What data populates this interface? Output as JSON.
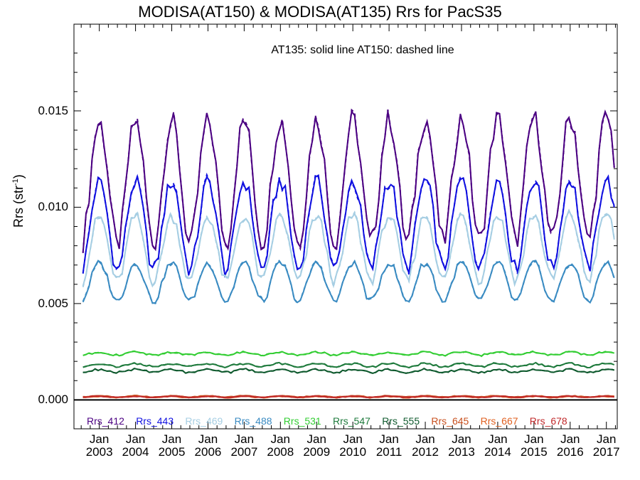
{
  "chart_data": {
    "type": "line",
    "title": "MODISA(AT150) & MODISA(AT135)  Rrs for PacS35",
    "annotation": "AT135: solid line   AT150: dashed line",
    "ylabel": "Rrs (str",
    "ylabel_sup": "-1",
    "ylabel_close": ")",
    "xlim": [
      2002.3,
      2017.3
    ],
    "ylim": [
      -0.0015,
      0.0195
    ],
    "yticks": [
      "0.000",
      "0.005",
      "0.010",
      "0.015"
    ],
    "ytick_values": [
      0.0,
      0.005,
      0.01,
      0.015
    ],
    "xticks": [
      {
        "line1": "Jan",
        "line2": "2003",
        "x": 2003
      },
      {
        "line1": "Jan",
        "line2": "2004",
        "x": 2004
      },
      {
        "line1": "Jan",
        "line2": "2005",
        "x": 2005
      },
      {
        "line1": "Jan",
        "line2": "2006",
        "x": 2006
      },
      {
        "line1": "Jan",
        "line2": "2007",
        "x": 2007
      },
      {
        "line1": "Jan",
        "line2": "2008",
        "x": 2008
      },
      {
        "line1": "Jan",
        "line2": "2009",
        "x": 2009
      },
      {
        "line1": "Jan",
        "line2": "2010",
        "x": 2010
      },
      {
        "line1": "Jan",
        "line2": "2011",
        "x": 2011
      },
      {
        "line1": "Jan",
        "line2": "2012",
        "x": 2012
      },
      {
        "line1": "Jan",
        "line2": "2013",
        "x": 2013
      },
      {
        "line1": "Jan",
        "line2": "2014",
        "x": 2014
      },
      {
        "line1": "Jan",
        "line2": "2015",
        "x": 2015
      },
      {
        "line1": "Jan",
        "line2": "2016",
        "x": 2016
      },
      {
        "line1": "Jan",
        "line2": "2017",
        "x": 2017
      }
    ],
    "grid": false,
    "legend_placement": "bottom inside plot",
    "series": [
      {
        "name": "Rrs_412",
        "color": "#4b0082",
        "mean": 0.0112,
        "amp": 0.0032,
        "trend": 2e-05
      },
      {
        "name": "Rrs_443",
        "color": "#1010e0",
        "mean": 0.009,
        "amp": 0.0023,
        "trend": 1e-05
      },
      {
        "name": "Rrs_469",
        "color": "#a6cee3",
        "mean": 0.0078,
        "amp": 0.0017,
        "trend": 1e-05
      },
      {
        "name": "Rrs_488",
        "color": "#3a8bc2",
        "mean": 0.0061,
        "amp": 0.001,
        "trend": 0.0
      },
      {
        "name": "Rrs_531",
        "color": "#32cd32",
        "mean": 0.0024,
        "amp": 8e-05,
        "trend": 0.0
      },
      {
        "name": "Rrs_547",
        "color": "#1e7a3c",
        "mean": 0.0018,
        "amp": 8e-05,
        "trend": 0.0
      },
      {
        "name": "Rrs_555",
        "color": "#0f5a2e",
        "mean": 0.0015,
        "amp": 8e-05,
        "trend": 0.0
      },
      {
        "name": "Rrs_645",
        "color": "#c8501e",
        "mean": 0.00018,
        "amp": 3e-05,
        "trend": 0.0
      },
      {
        "name": "Rrs_667",
        "color": "#e06020",
        "mean": 0.00015,
        "amp": 3e-05,
        "trend": 0.0
      },
      {
        "name": "Rrs_678",
        "color": "#c0282a",
        "mean": 0.00016,
        "amp": 3e-05,
        "trend": 0.0
      }
    ]
  }
}
